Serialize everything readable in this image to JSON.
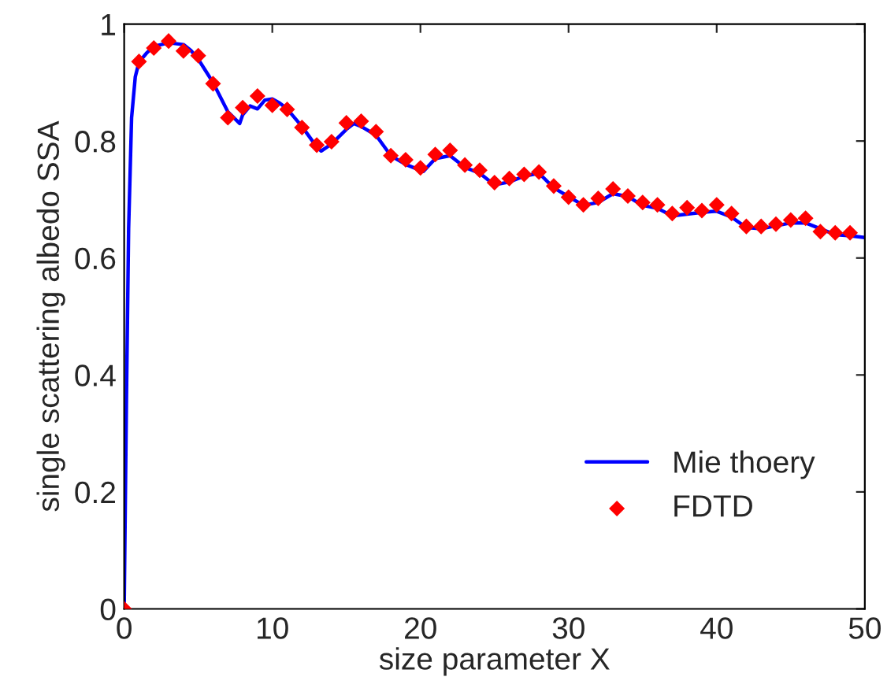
{
  "chart_data": {
    "type": "line",
    "xlabel": "size parameter X",
    "ylabel": "single scattering albedo SSA",
    "xlim": [
      0,
      50
    ],
    "ylim": [
      0,
      1
    ],
    "xticks": [
      0,
      10,
      20,
      30,
      40,
      50
    ],
    "yticks": [
      0,
      0.2,
      0.4,
      0.6,
      0.8,
      1
    ],
    "grid": false,
    "legend": "bottom right",
    "series": [
      {
        "name": "Mie thoery",
        "color": "#0000ff",
        "line_style": "solid",
        "marker": "none",
        "x": [
          0,
          0.15,
          0.3,
          0.5,
          0.75,
          1,
          1.5,
          2,
          3,
          4,
          4.5,
          5,
          5.5,
          6,
          6.5,
          7,
          7.8,
          8,
          8.5,
          9,
          9.5,
          10,
          10.5,
          11,
          12,
          13,
          13.3,
          14,
          15,
          15.5,
          16,
          17,
          18,
          19,
          20,
          20.2,
          21,
          22,
          23,
          24,
          25,
          26,
          27,
          28,
          29,
          30,
          31,
          32,
          33,
          34,
          35,
          36,
          37,
          38,
          39,
          40,
          41,
          42,
          43,
          44,
          45,
          46,
          47,
          48,
          49,
          50
        ],
        "values": [
          0,
          0.35,
          0.65,
          0.84,
          0.91,
          0.935,
          0.95,
          0.962,
          0.968,
          0.965,
          0.955,
          0.94,
          0.92,
          0.9,
          0.875,
          0.85,
          0.83,
          0.845,
          0.86,
          0.855,
          0.87,
          0.872,
          0.865,
          0.855,
          0.825,
          0.79,
          0.783,
          0.795,
          0.82,
          0.83,
          0.825,
          0.81,
          0.775,
          0.76,
          0.75,
          0.748,
          0.77,
          0.775,
          0.755,
          0.745,
          0.725,
          0.73,
          0.74,
          0.745,
          0.72,
          0.705,
          0.69,
          0.695,
          0.71,
          0.705,
          0.69,
          0.685,
          0.672,
          0.675,
          0.678,
          0.68,
          0.67,
          0.652,
          0.65,
          0.655,
          0.66,
          0.66,
          0.65,
          0.64,
          0.638,
          0.635
        ]
      },
      {
        "name": "FDTD",
        "type": "scatter",
        "color": "#ff0000",
        "marker": "diamond",
        "x": [
          0,
          1,
          2,
          3,
          4,
          5,
          6,
          7,
          8,
          9,
          10,
          11,
          12,
          13,
          14,
          15,
          16,
          17,
          18,
          19,
          20,
          21,
          22,
          23,
          24,
          25,
          26,
          27,
          28,
          29,
          30,
          31,
          32,
          33,
          34,
          35,
          36,
          37,
          38,
          39,
          40,
          41,
          42,
          43,
          44,
          45,
          46,
          47,
          48,
          49
        ],
        "values": [
          0,
          0.936,
          0.959,
          0.971,
          0.954,
          0.946,
          0.898,
          0.84,
          0.857,
          0.877,
          0.861,
          0.854,
          0.823,
          0.793,
          0.799,
          0.831,
          0.834,
          0.816,
          0.775,
          0.768,
          0.754,
          0.777,
          0.784,
          0.759,
          0.75,
          0.729,
          0.736,
          0.743,
          0.747,
          0.723,
          0.704,
          0.691,
          0.702,
          0.718,
          0.706,
          0.695,
          0.691,
          0.676,
          0.686,
          0.681,
          0.691,
          0.676,
          0.654,
          0.654,
          0.658,
          0.665,
          0.668,
          0.645,
          0.643,
          0.643
        ]
      }
    ]
  }
}
